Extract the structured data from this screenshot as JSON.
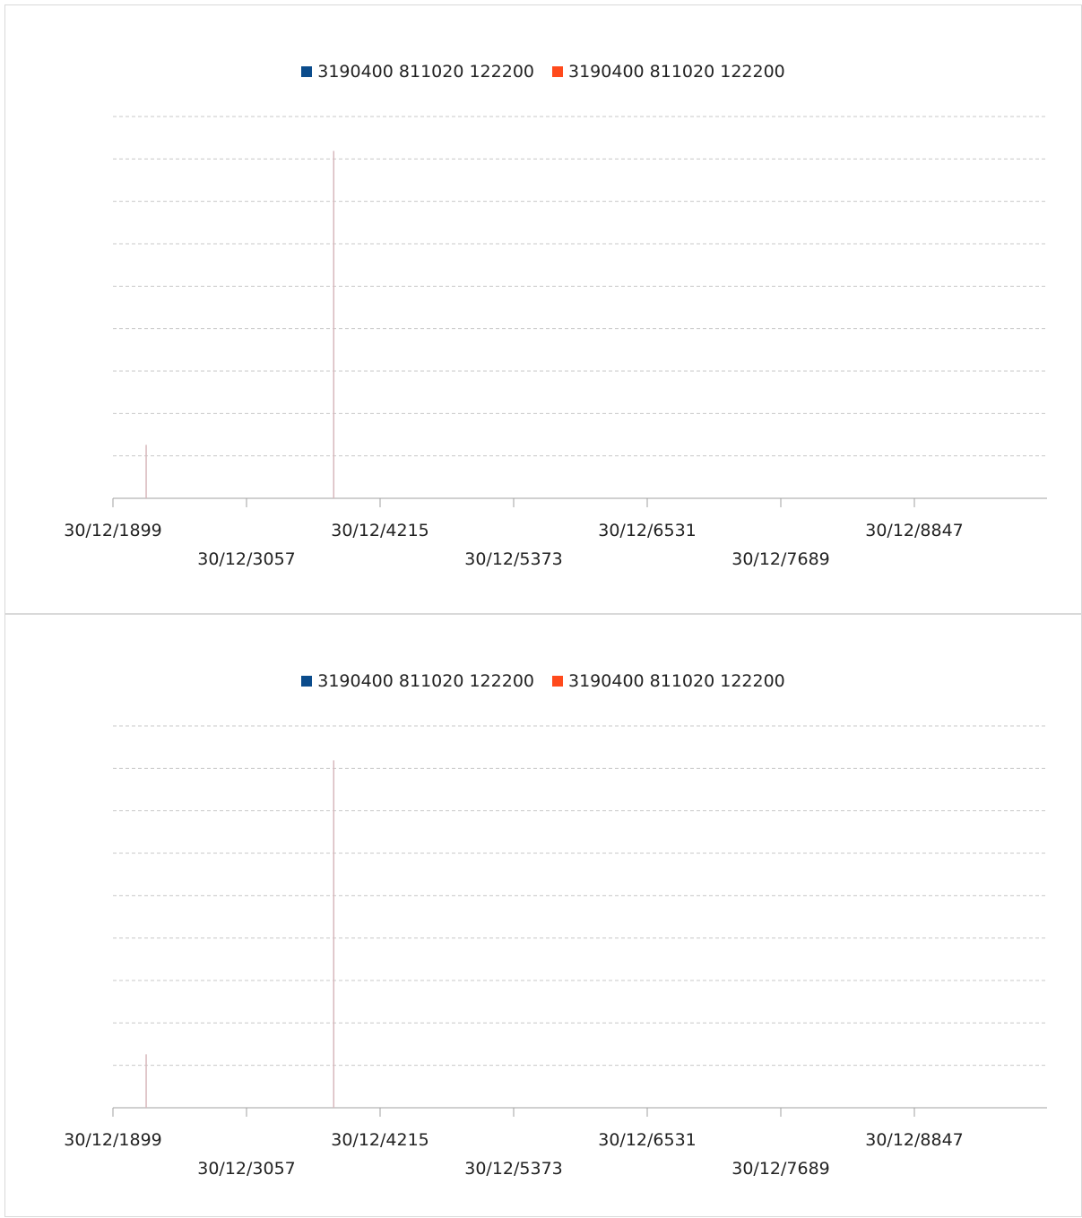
{
  "colors": {
    "series1": "#0b4c8c",
    "series2": "#ff4a1c",
    "grid": "#c8c8c8",
    "axis": "#a0a0a0",
    "spike": "#d8b8bc"
  },
  "chart_data": [
    {
      "type": "bar",
      "x_type": "date",
      "series": [
        {
          "name": "3190400 811020  122200",
          "color": "#0b4c8c",
          "points": []
        },
        {
          "name": "3190400 811020  122200",
          "color": "#ff4a1c",
          "points": []
        }
      ],
      "spikes": [
        {
          "x": "30/12/2187",
          "level": 0.14
        },
        {
          "x": "30/12/3813",
          "level": 0.91
        }
      ],
      "x_ticks": [
        "30/12/1899",
        "30/12/3057",
        "30/12/4215",
        "30/12/5373",
        "30/12/6531",
        "30/12/7689",
        "30/12/8847"
      ],
      "grid": true,
      "legend_position": "top"
    },
    {
      "type": "bar",
      "x_type": "date",
      "series": [
        {
          "name": "3190400 811020  122200",
          "color": "#0b4c8c",
          "points": []
        },
        {
          "name": "3190400 811020  122200",
          "color": "#ff4a1c",
          "points": []
        }
      ],
      "spikes": [
        {
          "x": "30/12/2187",
          "level": 0.14
        },
        {
          "x": "30/12/3813",
          "level": 0.91
        }
      ],
      "x_ticks": [
        "30/12/1899",
        "30/12/3057",
        "30/12/4215",
        "30/12/5373",
        "30/12/6531",
        "30/12/7689",
        "30/12/8847"
      ],
      "grid": true,
      "legend_position": "top"
    }
  ]
}
